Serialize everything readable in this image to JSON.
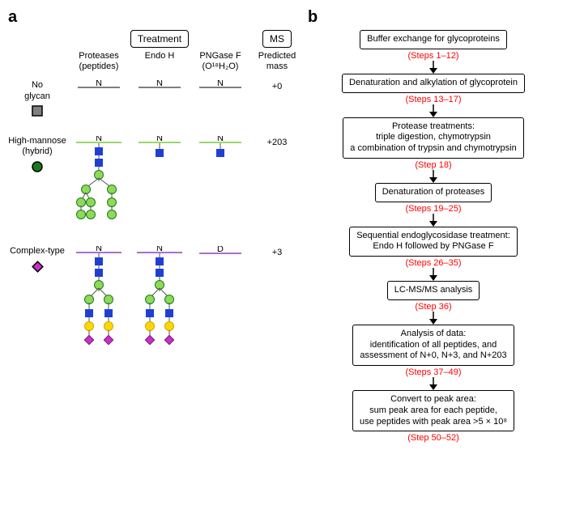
{
  "panelA": {
    "label": "a",
    "treatment_header": "Treatment",
    "ms_header": "MS",
    "columns": {
      "c1": "Proteases\n(peptides)",
      "c2": "Endo H",
      "c3": "PNGase F\n(O¹⁸H₂O)",
      "c4": "Predicted\nmass"
    },
    "rows": {
      "no_glycan": {
        "label": "No\nglycan",
        "mass": "+0"
      },
      "high_mannose": {
        "label": "High-mannose\n(hybrid)",
        "mass": "+203"
      },
      "complex": {
        "label": "Complex-type",
        "mass": "+3"
      }
    },
    "colors": {
      "no_glycan_line": "#555555",
      "high_mannose_line": "#7ac943",
      "complex_line": "#8e44ad",
      "glcnac": "#1f3fd4",
      "mannose_fill": "#8fd959",
      "mannose_stroke": "#1a7a1a",
      "galactose_fill": "#ffd700",
      "galactose_stroke": "#c9a800",
      "sialic_fill": "#c92fc9",
      "sialic_stroke": "#7a147a",
      "legend_square_fill": "#808080",
      "legend_square_stroke": "#000000"
    }
  },
  "panelB": {
    "label": "b",
    "steps": [
      {
        "text": "Buffer exchange for glycoproteins",
        "note": "(Steps 1–12)"
      },
      {
        "text": "Denaturation and alkylation of glycoprotein",
        "note": "(Steps 13–17)"
      },
      {
        "text": "Protease treatments:\ntriple digestion, chymotrypsin\na combination of trypsin and chymotrypsin",
        "note": "(Step 18)"
      },
      {
        "text": "Denaturation of proteases",
        "note": "(Steps 19–25)"
      },
      {
        "text": "Sequential endoglycosidase treatment:\nEndo H followed by PNGase F",
        "note": "(Steps 26–35)"
      },
      {
        "text": "LC-MS/MS analysis",
        "note": "(Step 36)"
      },
      {
        "text": "Analysis of data:\nidentification of all peptides, and\nassessment of N+0, N+3, and N+203",
        "note": "(Steps 37–49)"
      },
      {
        "text": "Convert to peak area:\nsum peak area for each peptide,\nuse peptides with peak area >5 × 10⁸",
        "note": "(Step 50–52)"
      }
    ]
  },
  "style": {
    "font": "Arial",
    "body_fontsize": 11,
    "panel_label_fontsize": 20,
    "steps_color": "#ff0000",
    "box_border": "#000000",
    "background": "#ffffff"
  }
}
